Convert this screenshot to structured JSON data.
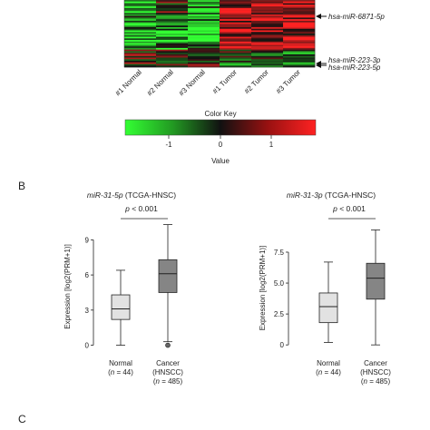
{
  "heatmap": {
    "columns": [
      "#1 Normal",
      "#2 Normal",
      "#3 Normal",
      "#1 Tumor",
      "#2 Tumor",
      "#3 Tumor"
    ],
    "annotations": [
      "hsa-miR-6871-5p",
      "hsa-miR-223-3p",
      "hsa-miR-223-5p"
    ],
    "color_key": {
      "title": "Color Key",
      "ticks": [
        "-1",
        "0",
        "1"
      ],
      "xlabel": "Value",
      "colors": {
        "low": "#33ff33",
        "mid": "#111111",
        "high": "#ff2222"
      }
    }
  },
  "panel_b_label": "B",
  "panel_c_label": "C",
  "chart_data": [
    {
      "type": "box",
      "title_gene": "miR-31-5p",
      "title_source": "(TCGA-HNSC)",
      "pvalue_label": "p",
      "pvalue_text": "< 0.001",
      "ylabel": "Expression [log2(PRM+1)]",
      "ylim": [
        -0.5,
        10.5
      ],
      "yticks": [
        0,
        3,
        6,
        9
      ],
      "groups": [
        {
          "label": "Normal",
          "n_label": "(n = 44)",
          "color": "#e2e2e2",
          "whisker_low": 0.0,
          "q1": 2.2,
          "median": 3.1,
          "q3": 4.3,
          "whisker_high": 6.4,
          "outliers": []
        },
        {
          "label": "Cancer",
          "label2": "(HNSCC)",
          "n_label": "(n = 485)",
          "color": "#858585",
          "whisker_low": 0.3,
          "q1": 4.5,
          "median": 6.1,
          "q3": 7.3,
          "whisker_high": 10.3,
          "outliers": [
            0.0
          ]
        }
      ]
    },
    {
      "type": "box",
      "title_gene": "miR-31-3p",
      "title_source": "(TCGA-HNSC)",
      "pvalue_label": "p",
      "pvalue_text": "< 0.001",
      "ylabel": "Expression [log2(PRM+1)]",
      "ylim": [
        -0.5,
        9.7
      ],
      "yticks": [
        0,
        2.5,
        5.0,
        7.5
      ],
      "ytick_labels": [
        "0",
        "2.5",
        "5.0",
        "7.5"
      ],
      "groups": [
        {
          "label": "Normal",
          "n_label": "(n = 44)",
          "color": "#e2e2e2",
          "whisker_low": 0.2,
          "q1": 1.8,
          "median": 3.1,
          "q3": 4.2,
          "whisker_high": 6.7,
          "outliers": []
        },
        {
          "label": "Cancer",
          "label2": "(HNSCC)",
          "n_label": "(n = 485)",
          "color": "#858585",
          "whisker_low": 0.0,
          "q1": 3.7,
          "median": 5.4,
          "q3": 6.6,
          "whisker_high": 9.3,
          "outliers": []
        }
      ]
    }
  ]
}
